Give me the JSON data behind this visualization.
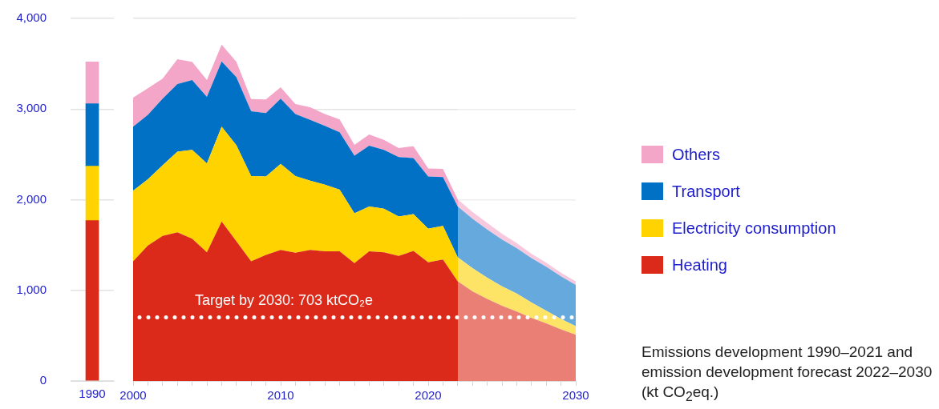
{
  "chart_data": [
    {
      "type": "bar",
      "stacked": true,
      "categories": [
        "1990"
      ],
      "series": [
        {
          "color": "#dc2a1a",
          "values": [
            1770
          ]
        },
        {
          "color": "#fed300",
          "values": [
            600
          ]
        },
        {
          "color": "#0071c5",
          "values": [
            690
          ]
        },
        {
          "color": "#f4a6c8",
          "values": [
            460
          ]
        }
      ],
      "ylim": [
        0,
        4000
      ],
      "yticks": [
        0,
        {
          "value": 1000,
          "label": "1,000"
        },
        {
          "value": 2000,
          "label": "2,000"
        },
        {
          "value": 3000,
          "label": "3,000"
        },
        {
          "value": 4000,
          "label": "4,000"
        }
      ],
      "grid": "y"
    },
    {
      "type": "area",
      "stacked": true,
      "x": [
        2000,
        2001,
        2002,
        2003,
        2004,
        2005,
        2006,
        2007,
        2008,
        2009,
        2010,
        2011,
        2012,
        2013,
        2014,
        2015,
        2016,
        2017,
        2018,
        2019,
        2020,
        2021,
        2022,
        2023,
        2024,
        2025,
        2026,
        2027,
        2028,
        2029,
        2030
      ],
      "series": [
        {
          "name": "Heating",
          "color": "#dc2a1a",
          "values": [
            1320,
            1495,
            1600,
            1640,
            1570,
            1420,
            1760,
            1540,
            1320,
            1390,
            1445,
            1415,
            1445,
            1430,
            1430,
            1300,
            1430,
            1420,
            1380,
            1435,
            1310,
            1340,
            1100,
            990,
            905,
            830,
            765,
            695,
            635,
            570,
            510
          ]
        },
        {
          "name": "Electricity consumption",
          "color": "#fed300",
          "values": [
            780,
            730,
            780,
            890,
            980,
            980,
            1045,
            1060,
            940,
            865,
            950,
            845,
            765,
            735,
            680,
            550,
            495,
            480,
            435,
            405,
            370,
            370,
            265,
            255,
            235,
            215,
            200,
            170,
            140,
            115,
            95
          ]
        },
        {
          "name": "Transport",
          "color": "#0071c5",
          "values": [
            705,
            710,
            735,
            745,
            770,
            735,
            720,
            750,
            715,
            700,
            720,
            685,
            670,
            650,
            635,
            635,
            670,
            650,
            655,
            620,
            575,
            540,
            560,
            545,
            530,
            515,
            500,
            490,
            485,
            470,
            455
          ]
        },
        {
          "name": "Others",
          "color": "#f4a6c8",
          "values": [
            320,
            295,
            220,
            275,
            200,
            185,
            185,
            170,
            135,
            150,
            125,
            110,
            140,
            130,
            140,
            120,
            125,
            110,
            100,
            130,
            90,
            90,
            80,
            75,
            75,
            65,
            55,
            50,
            45,
            40,
            40
          ]
        }
      ],
      "xlim": [
        2000,
        2030
      ],
      "xticks": [
        2000,
        {
          "value": 2001,
          "label": null
        },
        {
          "value": 2002,
          "label": null
        },
        {
          "value": 2003,
          "label": null
        },
        {
          "value": 2004,
          "label": null
        },
        {
          "value": 2005,
          "label": null
        },
        {
          "value": 2006,
          "label": null
        },
        {
          "value": 2007,
          "label": null
        },
        {
          "value": 2008,
          "label": null
        },
        {
          "value": 2009,
          "label": null
        },
        2010,
        {
          "value": 2011,
          "label": null
        },
        {
          "value": 2012,
          "label": null
        },
        {
          "value": 2013,
          "label": null
        },
        {
          "value": 2014,
          "label": null
        },
        {
          "value": 2015,
          "label": null
        },
        {
          "value": 2016,
          "label": null
        },
        {
          "value": 2017,
          "label": null
        },
        {
          "value": 2018,
          "label": null
        },
        {
          "value": 2019,
          "label": null
        },
        2020,
        {
          "value": 2021,
          "label": null
        },
        {
          "value": 2022,
          "label": null
        },
        {
          "value": 2023,
          "label": null
        },
        {
          "value": 2024,
          "label": null
        },
        {
          "value": 2025,
          "label": null
        },
        {
          "value": 2026,
          "label": null
        },
        {
          "value": 2027,
          "label": null
        },
        {
          "value": 2028,
          "label": null
        },
        {
          "value": 2029,
          "label": null
        },
        2030
      ],
      "ylim": [
        0,
        4000
      ],
      "yticks": [
        0,
        1000,
        2000,
        3000,
        4000
      ],
      "tick_labels": "x",
      "grid": "y",
      "legend": "right",
      "ref_lines": [
        {
          "axis": "y",
          "value": 703,
          "label": "Target by 2030: 703 ktCO₂e",
          "color": "#ffffff",
          "line_style": "dotted"
        }
      ],
      "bands": [
        {
          "axis": "x",
          "from": 2022,
          "to": 2030
        }
      ],
      "annotations": [
        "Emissions development 1990–2021 and emission development forecast 2022–2030 (kt CO$_{2}$eq.)"
      ]
    }
  ]
}
